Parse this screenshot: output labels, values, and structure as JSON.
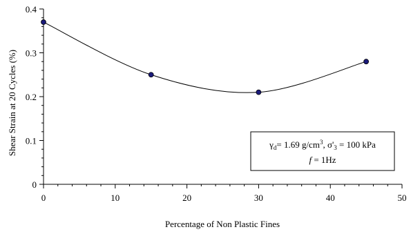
{
  "chart_data": {
    "type": "scatter",
    "title": "",
    "xlabel": "Percentage of Non Plastic Fines",
    "ylabel": "Shear Strain at 20 Cycles (%)",
    "xlim": [
      0,
      50
    ],
    "ylim": [
      0,
      0.4
    ],
    "x_ticks": [
      "0",
      "10",
      "20",
      "30",
      "40",
      "50"
    ],
    "y_ticks": [
      "0",
      "0.1",
      "0.2",
      "0.3",
      "0.4"
    ],
    "x": [
      0,
      15,
      30,
      45
    ],
    "y": [
      0.37,
      0.25,
      0.21,
      0.28
    ],
    "smooth_line": true,
    "grid": false,
    "marker_color": "#1a1a7a",
    "annotation": {
      "gamma": "γ",
      "gamma_sub": "d",
      "density": "= 1.69 g/cm",
      "density_sup": "3",
      "sigma": ", σ'",
      "sigma_sub": "3",
      "pressure": " = 100 kPa",
      "freq_symbol": "f",
      "freq_value": " = 1Hz"
    }
  }
}
